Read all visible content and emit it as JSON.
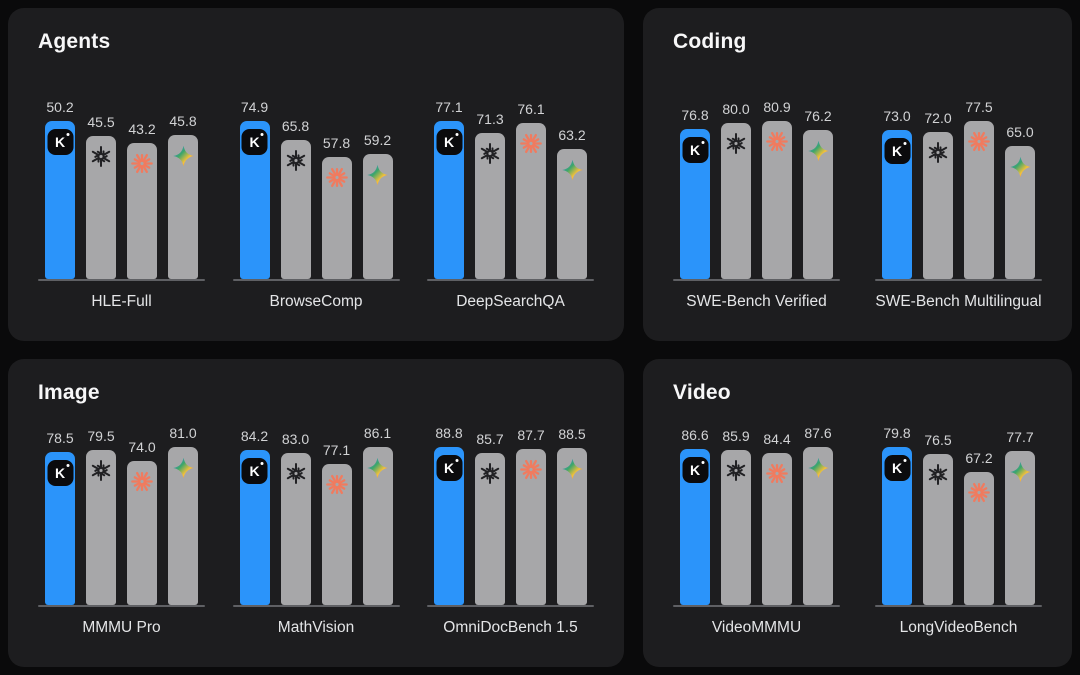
{
  "page": {
    "background": "#0a0a0b"
  },
  "palette": {
    "panel_bg": "#1d1d1f",
    "title_color": "#f7f7f8",
    "value_label_color": "#d2d3d5",
    "category_label_color": "#e4e5e7",
    "baseline_color": "#5f6064",
    "highlight_bar": "#2b94fa",
    "default_bar": "#a7a7a9",
    "kimi_badge_bg": "#0b0b0d",
    "kimi_badge_fg": "#ffffff",
    "openai_glyph": "#202023",
    "claude_glyph": "#f07b5f",
    "gemini_gradient": [
      "#468cf9",
      "#3ba56b",
      "#f6c13b",
      "#ea4335"
    ]
  },
  "models": [
    {
      "name": "Kimi",
      "icon": "kimi-k-badge-icon",
      "highlight": true
    },
    {
      "name": "OpenAI",
      "icon": "openai-logo-icon",
      "highlight": false
    },
    {
      "name": "Claude",
      "icon": "claude-sunburst-icon",
      "highlight": false
    },
    {
      "name": "Gemini",
      "icon": "gemini-star-icon",
      "highlight": false
    }
  ],
  "chart_data": [
    {
      "type": "bar",
      "title": "Agents",
      "categories": [
        "HLE-Full",
        "BrowseComp",
        "DeepSearchQA"
      ],
      "series": [
        {
          "name": "Kimi",
          "values": [
            50.2,
            74.9,
            77.1
          ]
        },
        {
          "name": "OpenAI",
          "values": [
            45.5,
            65.8,
            71.3
          ]
        },
        {
          "name": "Claude",
          "values": [
            43.2,
            57.8,
            76.1
          ]
        },
        {
          "name": "Gemini",
          "values": [
            45.8,
            59.2,
            63.2
          ]
        }
      ],
      "value_labels": "above bars, one decimal",
      "legend": "model logos shown inside bar tops",
      "grid": false
    },
    {
      "type": "bar",
      "title": "Coding",
      "categories": [
        "SWE-Bench Verified",
        "SWE-Bench Multilingual"
      ],
      "series": [
        {
          "name": "Kimi",
          "values": [
            76.8,
            73.0
          ]
        },
        {
          "name": "OpenAI",
          "values": [
            80.0,
            72.0
          ]
        },
        {
          "name": "Claude",
          "values": [
            80.9,
            77.5
          ]
        },
        {
          "name": "Gemini",
          "values": [
            76.2,
            65.0
          ]
        }
      ],
      "value_labels": "above bars, one decimal",
      "legend": "model logos shown inside bar tops",
      "grid": false
    },
    {
      "type": "bar",
      "title": "Image",
      "categories": [
        "MMMU Pro",
        "MathVision",
        "OmniDocBench 1.5"
      ],
      "series": [
        {
          "name": "Kimi",
          "values": [
            78.5,
            84.2,
            88.8
          ]
        },
        {
          "name": "OpenAI",
          "values": [
            79.5,
            83.0,
            85.7
          ]
        },
        {
          "name": "Claude",
          "values": [
            74.0,
            77.1,
            87.7
          ]
        },
        {
          "name": "Gemini",
          "values": [
            81.0,
            86.1,
            88.5
          ]
        }
      ],
      "value_labels": "above bars, one decimal",
      "legend": "model logos shown inside bar tops",
      "grid": false
    },
    {
      "type": "bar",
      "title": "Video",
      "categories": [
        "VideoMMMU",
        "LongVideoBench"
      ],
      "series": [
        {
          "name": "Kimi",
          "values": [
            86.6,
            79.8
          ]
        },
        {
          "name": "OpenAI",
          "values": [
            85.9,
            76.5
          ]
        },
        {
          "name": "Claude",
          "values": [
            84.4,
            67.2
          ]
        },
        {
          "name": "Gemini",
          "values": [
            87.6,
            77.7
          ]
        }
      ],
      "value_labels": "above bars, one decimal",
      "legend": "model logos shown inside bar tops",
      "grid": false
    }
  ]
}
